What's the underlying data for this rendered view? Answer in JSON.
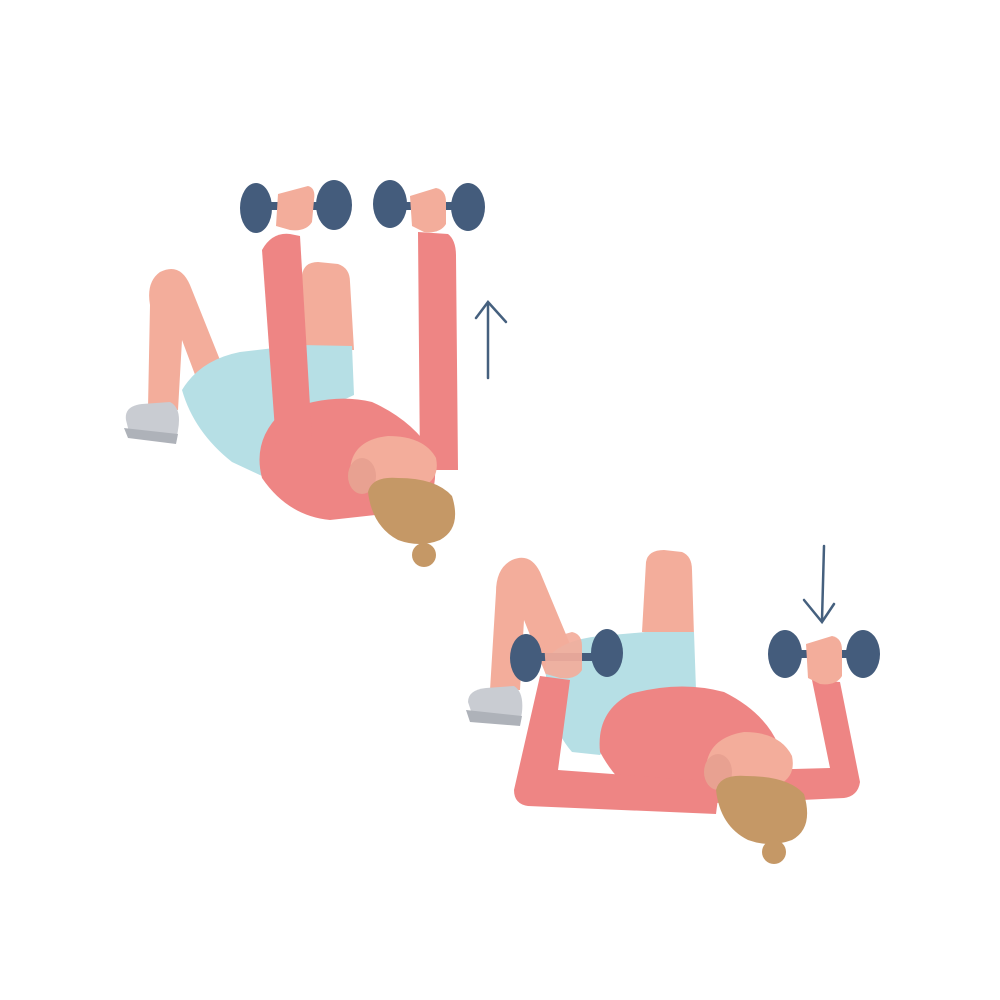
{
  "illustration": {
    "panels": [
      {
        "id": "upper",
        "arms": "extended",
        "arrow": "up-arrow-icon"
      },
      {
        "id": "lower",
        "arms": "lowered",
        "arrow": "down-arrow-icon"
      }
    ],
    "colors": {
      "background": "#ffffff",
      "shirt": "#ee8584",
      "skin": "#f3ad9b",
      "shorts": "#b6dfe5",
      "hair": "#c59866",
      "dumbbell": "#445c7c",
      "shoe": "#c9ccd2",
      "shoe_sole": "#aeb2b9",
      "arrow": "#45607e"
    }
  }
}
